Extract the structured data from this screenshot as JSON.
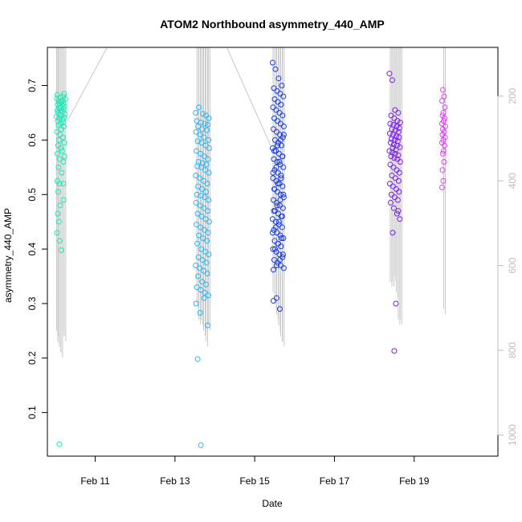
{
  "chart_data": {
    "type": "scatter",
    "title": "ATOM2 Northbound asymmetry_440_AMP",
    "xlabel": "Date",
    "ylabel": "asymmetry_440_AMP",
    "x_unit": "days (Feb)",
    "xlim": [
      9.8,
      21.1
    ],
    "ylim": [
      0.02,
      0.77
    ],
    "x_ticks": [
      {
        "value": 11,
        "label": "Feb 11"
      },
      {
        "value": 13,
        "label": "Feb 13"
      },
      {
        "value": 15,
        "label": "Feb 15"
      },
      {
        "value": 17,
        "label": "Feb 17"
      },
      {
        "value": 19,
        "label": "Feb 19"
      }
    ],
    "y_ticks": [
      {
        "value": 0.1,
        "label": "0.1"
      },
      {
        "value": 0.2,
        "label": "0.2"
      },
      {
        "value": 0.3,
        "label": "0.3"
      },
      {
        "value": 0.4,
        "label": "0.4"
      },
      {
        "value": 0.5,
        "label": "0.5"
      },
      {
        "value": 0.6,
        "label": "0.6"
      },
      {
        "value": 0.7,
        "label": "0.7"
      }
    ],
    "right_axis": {
      "ylim": [
        1050,
        85
      ],
      "ticks": [
        {
          "value": 200,
          "label": "200"
        },
        {
          "value": 400,
          "label": "400"
        },
        {
          "value": 600,
          "label": "600"
        },
        {
          "value": 800,
          "label": "800"
        },
        {
          "value": 1000,
          "label": "1000"
        }
      ],
      "color": "#bdbdbd"
    },
    "grid": false,
    "legend": "none",
    "profile_color": "#c8c8c8",
    "connector_lines": [
      {
        "x": [
          10.3,
          11.3
        ],
        "y": [
          0.635,
          0.77
        ]
      },
      {
        "x": [
          14.3,
          15.4
        ],
        "y": [
          0.77,
          0.59
        ]
      }
    ],
    "series": [
      {
        "color": "#1de9b6",
        "x": [
          10.22,
          10.05,
          10.2,
          10.12,
          10.04,
          10.25,
          10.18,
          10.08,
          10.15,
          10.1,
          10.2,
          10.06,
          10.17,
          10.23,
          10.13,
          10.09,
          10.21,
          10.05,
          10.14,
          10.19,
          10.07,
          10.24,
          10.11,
          10.16,
          10.03,
          10.22,
          10.1,
          10.18,
          10.06,
          10.2,
          10.13,
          10.08,
          10.21,
          10.15,
          10.04,
          10.12,
          10.19,
          10.09,
          10.22,
          10.07,
          10.14,
          10.17,
          10.05,
          10.23,
          10.11,
          10.2,
          10.08,
          10.16,
          10.05,
          10.1,
          10.07,
          10.2,
          10.12,
          10.06,
          10.09,
          10.04,
          10.11,
          10.15
        ],
        "y": [
          0.685,
          0.683,
          0.68,
          0.678,
          0.676,
          0.675,
          0.673,
          0.672,
          0.67,
          0.668,
          0.667,
          0.665,
          0.664,
          0.662,
          0.66,
          0.659,
          0.657,
          0.655,
          0.654,
          0.652,
          0.65,
          0.648,
          0.646,
          0.645,
          0.643,
          0.641,
          0.64,
          0.637,
          0.635,
          0.632,
          0.63,
          0.627,
          0.625,
          0.62,
          0.615,
          0.61,
          0.605,
          0.6,
          0.595,
          0.59,
          0.585,
          0.58,
          0.575,
          0.57,
          0.565,
          0.56,
          0.55,
          0.54,
          0.525,
          0.52,
          0.505,
          0.49,
          0.48,
          0.465,
          0.45,
          0.43,
          0.415,
          0.398
        ],
        "extra": [
          {
            "x": 10.1,
            "y": 0.042
          },
          {
            "x": 10.2,
            "y": 0.52
          }
        ],
        "profiles": [
          {
            "x": 10.03,
            "ymin": 0.25,
            "ymax": 0.77
          },
          {
            "x": 10.06,
            "ymin": 0.23,
            "ymax": 0.77
          },
          {
            "x": 10.1,
            "ymin": 0.22,
            "ymax": 0.77
          },
          {
            "x": 10.14,
            "ymin": 0.21,
            "ymax": 0.77
          },
          {
            "x": 10.18,
            "ymin": 0.25,
            "ymax": 0.77
          },
          {
            "x": 10.22,
            "ymin": 0.24,
            "ymax": 0.77
          }
        ]
      },
      {
        "color": "#29b6f6",
        "x": [
          13.52,
          13.6,
          13.7,
          13.78,
          13.85,
          13.55,
          13.65,
          13.75,
          13.82,
          13.58,
          13.68,
          13.8,
          13.53,
          13.63,
          13.73,
          13.84,
          13.57,
          13.67,
          13.77,
          13.86,
          13.54,
          13.64,
          13.74,
          13.83,
          13.59,
          13.69,
          13.79,
          13.56,
          13.66,
          13.76,
          13.85,
          13.52,
          13.62,
          13.72,
          13.81,
          13.58,
          13.68,
          13.78,
          13.55,
          13.65,
          13.75,
          13.84,
          13.53,
          13.63,
          13.73,
          13.82,
          13.57,
          13.67,
          13.77,
          13.86,
          13.54,
          13.64,
          13.74,
          13.83,
          13.6,
          13.7,
          13.8,
          13.56,
          13.66,
          13.76,
          13.85,
          13.59,
          13.69,
          13.79,
          13.52,
          13.62,
          13.72,
          13.81,
          13.58,
          13.68,
          13.78,
          13.55,
          13.65,
          13.75,
          13.84,
          13.53,
          13.63,
          13.73,
          13.82,
          13.57
        ],
        "y": [
          0.65,
          0.66,
          0.648,
          0.645,
          0.64,
          0.635,
          0.632,
          0.63,
          0.628,
          0.625,
          0.62,
          0.618,
          0.615,
          0.61,
          0.605,
          0.6,
          0.598,
          0.595,
          0.59,
          0.585,
          0.58,
          0.575,
          0.57,
          0.565,
          0.56,
          0.558,
          0.555,
          0.552,
          0.55,
          0.545,
          0.54,
          0.535,
          0.53,
          0.525,
          0.52,
          0.515,
          0.51,
          0.505,
          0.5,
          0.498,
          0.495,
          0.49,
          0.485,
          0.48,
          0.475,
          0.47,
          0.465,
          0.46,
          0.455,
          0.45,
          0.445,
          0.44,
          0.435,
          0.43,
          0.425,
          0.42,
          0.415,
          0.41,
          0.4,
          0.395,
          0.39,
          0.385,
          0.38,
          0.375,
          0.37,
          0.365,
          0.36,
          0.355,
          0.35,
          0.34,
          0.335,
          0.33,
          0.325,
          0.32,
          0.315,
          0.3,
          0.283,
          0.31,
          0.26,
          0.198
        ],
        "extra": [
          {
            "x": 13.65,
            "y": 0.04
          }
        ],
        "profiles": [
          {
            "x": 13.55,
            "ymin": 0.3,
            "ymax": 0.77
          },
          {
            "x": 13.6,
            "ymin": 0.27,
            "ymax": 0.77
          },
          {
            "x": 13.66,
            "ymin": 0.27,
            "ymax": 0.77
          },
          {
            "x": 13.72,
            "ymin": 0.25,
            "ymax": 0.77
          },
          {
            "x": 13.78,
            "ymin": 0.23,
            "ymax": 0.77
          },
          {
            "x": 13.84,
            "ymin": 0.26,
            "ymax": 0.77
          }
        ]
      },
      {
        "color": "#1a3fe0",
        "x": [
          15.45,
          15.52,
          15.6,
          15.68,
          15.48,
          15.56,
          15.64,
          15.72,
          15.5,
          15.58,
          15.66,
          15.46,
          15.54,
          15.62,
          15.7,
          15.49,
          15.57,
          15.65,
          15.73,
          15.47,
          15.55,
          15.63,
          15.71,
          15.51,
          15.59,
          15.67,
          15.45,
          15.53,
          15.61,
          15.69,
          15.48,
          15.56,
          15.64,
          15.72,
          15.5,
          15.58,
          15.66,
          15.46,
          15.54,
          15.62,
          15.7,
          15.49,
          15.57,
          15.65,
          15.73,
          15.47,
          15.55,
          15.63,
          15.71,
          15.51,
          15.59,
          15.67,
          15.45,
          15.53,
          15.61,
          15.69,
          15.48,
          15.56,
          15.64,
          15.72,
          15.5,
          15.58,
          15.66,
          15.46,
          15.54,
          15.62,
          15.7,
          15.49,
          15.57,
          15.65,
          15.73,
          15.47,
          15.55,
          15.63,
          15.71,
          15.51,
          15.59,
          15.67,
          15.45,
          15.53,
          15.61,
          15.69,
          15.48,
          15.56,
          15.64,
          15.72,
          15.5,
          15.58,
          15.66,
          15.46,
          15.54,
          15.62,
          15.7,
          15.49,
          15.57,
          15.65,
          15.73,
          15.47,
          15.55,
          15.63
        ],
        "y": [
          0.742,
          0.73,
          0.713,
          0.7,
          0.695,
          0.69,
          0.685,
          0.68,
          0.675,
          0.67,
          0.665,
          0.66,
          0.655,
          0.65,
          0.645,
          0.64,
          0.635,
          0.63,
          0.625,
          0.62,
          0.615,
          0.61,
          0.605,
          0.6,
          0.595,
          0.59,
          0.585,
          0.58,
          0.575,
          0.57,
          0.565,
          0.56,
          0.555,
          0.55,
          0.545,
          0.54,
          0.535,
          0.53,
          0.525,
          0.52,
          0.515,
          0.51,
          0.505,
          0.5,
          0.495,
          0.49,
          0.485,
          0.48,
          0.475,
          0.47,
          0.465,
          0.46,
          0.455,
          0.45,
          0.445,
          0.44,
          0.435,
          0.43,
          0.425,
          0.42,
          0.415,
          0.41,
          0.405,
          0.4,
          0.395,
          0.39,
          0.385,
          0.38,
          0.375,
          0.37,
          0.365,
          0.362,
          0.37,
          0.38,
          0.39,
          0.4,
          0.41,
          0.42,
          0.43,
          0.44,
          0.45,
          0.46,
          0.47,
          0.48,
          0.49,
          0.5,
          0.51,
          0.52,
          0.53,
          0.54,
          0.55,
          0.56,
          0.57,
          0.58,
          0.59,
          0.6,
          0.61,
          0.305,
          0.31,
          0.29
        ],
        "extra": [],
        "profiles": [
          {
            "x": 15.46,
            "ymin": 0.32,
            "ymax": 0.77
          },
          {
            "x": 15.5,
            "ymin": 0.3,
            "ymax": 0.77
          },
          {
            "x": 15.55,
            "ymin": 0.28,
            "ymax": 0.77
          },
          {
            "x": 15.6,
            "ymin": 0.26,
            "ymax": 0.77
          },
          {
            "x": 15.65,
            "ymin": 0.24,
            "ymax": 0.77
          },
          {
            "x": 15.7,
            "ymin": 0.23,
            "ymax": 0.77
          }
        ]
      },
      {
        "color": "#7c1ff0",
        "x": [
          18.38,
          18.45,
          18.52,
          18.6,
          18.42,
          18.5,
          18.58,
          18.65,
          18.4,
          18.48,
          18.56,
          18.63,
          18.44,
          18.53,
          18.61,
          18.39,
          18.47,
          18.55,
          18.62,
          18.43,
          18.51,
          18.59,
          18.41,
          18.49,
          18.57,
          18.64,
          18.46,
          18.54,
          18.38,
          18.45,
          18.52,
          18.6,
          18.42,
          18.5,
          18.58,
          18.65,
          18.4,
          18.48,
          18.56,
          18.63,
          18.44,
          18.53,
          18.61,
          18.39,
          18.47,
          18.55,
          18.62,
          18.43,
          18.51,
          18.59,
          18.41,
          18.49,
          18.57,
          18.64,
          18.46,
          18.54,
          18.6,
          18.5
        ],
        "y": [
          0.722,
          0.71,
          0.655,
          0.65,
          0.645,
          0.64,
          0.635,
          0.632,
          0.63,
          0.628,
          0.625,
          0.622,
          0.62,
          0.618,
          0.615,
          0.612,
          0.61,
          0.607,
          0.605,
          0.602,
          0.6,
          0.598,
          0.595,
          0.592,
          0.59,
          0.587,
          0.585,
          0.582,
          0.58,
          0.577,
          0.575,
          0.572,
          0.57,
          0.567,
          0.565,
          0.56,
          0.555,
          0.55,
          0.545,
          0.54,
          0.535,
          0.53,
          0.525,
          0.52,
          0.515,
          0.51,
          0.505,
          0.5,
          0.495,
          0.49,
          0.485,
          0.475,
          0.465,
          0.455,
          0.43,
          0.3,
          0.47,
          0.213
        ],
        "extra": [],
        "profiles": [
          {
            "x": 18.4,
            "ymin": 0.34,
            "ymax": 0.77
          },
          {
            "x": 18.45,
            "ymin": 0.34,
            "ymax": 0.77
          },
          {
            "x": 18.5,
            "ymin": 0.35,
            "ymax": 0.77
          },
          {
            "x": 18.55,
            "ymin": 0.32,
            "ymax": 0.77
          },
          {
            "x": 18.6,
            "ymin": 0.27,
            "ymax": 0.77
          },
          {
            "x": 18.65,
            "ymin": 0.27,
            "ymax": 0.77
          }
        ]
      },
      {
        "color": "#e040fb",
        "x": [
          19.72,
          19.75,
          19.7,
          19.77,
          19.73,
          19.71,
          19.76,
          19.74,
          19.7,
          19.78,
          19.72,
          19.75,
          19.71,
          19.77,
          19.73,
          19.7,
          19.76,
          19.74,
          19.72,
          19.75,
          19.71,
          19.73,
          19.7
        ],
        "y": [
          0.692,
          0.68,
          0.672,
          0.66,
          0.65,
          0.645,
          0.64,
          0.635,
          0.63,
          0.625,
          0.62,
          0.615,
          0.61,
          0.605,
          0.6,
          0.595,
          0.59,
          0.58,
          0.575,
          0.56,
          0.545,
          0.525,
          0.513
        ],
        "extra": [],
        "profiles": [
          {
            "x": 19.74,
            "ymin": 0.29,
            "ymax": 0.77
          }
        ]
      }
    ]
  }
}
